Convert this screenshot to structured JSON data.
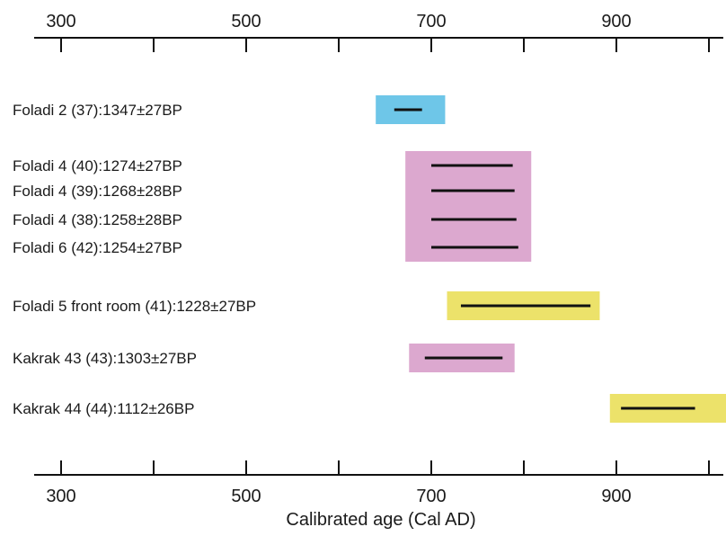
{
  "chart_data": {
    "type": "range",
    "title": "",
    "xlabel": "Calibrated age (Cal AD)",
    "xlim": [
      280,
      1040
    ],
    "x_ticks": [
      300,
      400,
      500,
      600,
      700,
      800,
      900,
      1000
    ],
    "tick_labels": [
      "300",
      "500",
      "700",
      "900"
    ],
    "colors": {
      "blue": "#6ec6e8",
      "pink": "#dca8cf",
      "yellow": "#ece26a",
      "line": "#111111",
      "axis": "#111111"
    },
    "rows": [
      {
        "label": "Foladi 2 (37):1347±27BP",
        "line": [
          660,
          690
        ]
      },
      {
        "label": "Foladi 4 (40):1274±27BP",
        "line": [
          700,
          788
        ]
      },
      {
        "label": "Foladi 4 (39):1268±28BP",
        "line": [
          700,
          790
        ]
      },
      {
        "label": "Foladi 4 (38):1258±28BP",
        "line": [
          700,
          792
        ]
      },
      {
        "label": "Foladi 6 (42):1254±27BP",
        "line": [
          700,
          794
        ]
      },
      {
        "label": "Foladi 5 front room (41):1228±27BP",
        "line": [
          732,
          872
        ]
      },
      {
        "label": "Kakrak 43 (43):1303±27BP",
        "line": [
          693,
          777
        ]
      },
      {
        "label": "Kakrak 44 (44):1112±26BP",
        "line": [
          905,
          985
        ]
      }
    ],
    "boxes": [
      {
        "x": [
          640,
          715
        ],
        "rows": [
          0,
          0
        ],
        "color": "blue"
      },
      {
        "x": [
          672,
          808
        ],
        "rows": [
          1,
          4
        ],
        "color": "pink"
      },
      {
        "x": [
          717,
          882
        ],
        "rows": [
          5,
          5
        ],
        "color": "yellow"
      },
      {
        "x": [
          676,
          790
        ],
        "rows": [
          6,
          6
        ],
        "color": "pink"
      },
      {
        "x": [
          893,
          1027
        ],
        "rows": [
          7,
          7
        ],
        "color": "yellow"
      }
    ]
  }
}
